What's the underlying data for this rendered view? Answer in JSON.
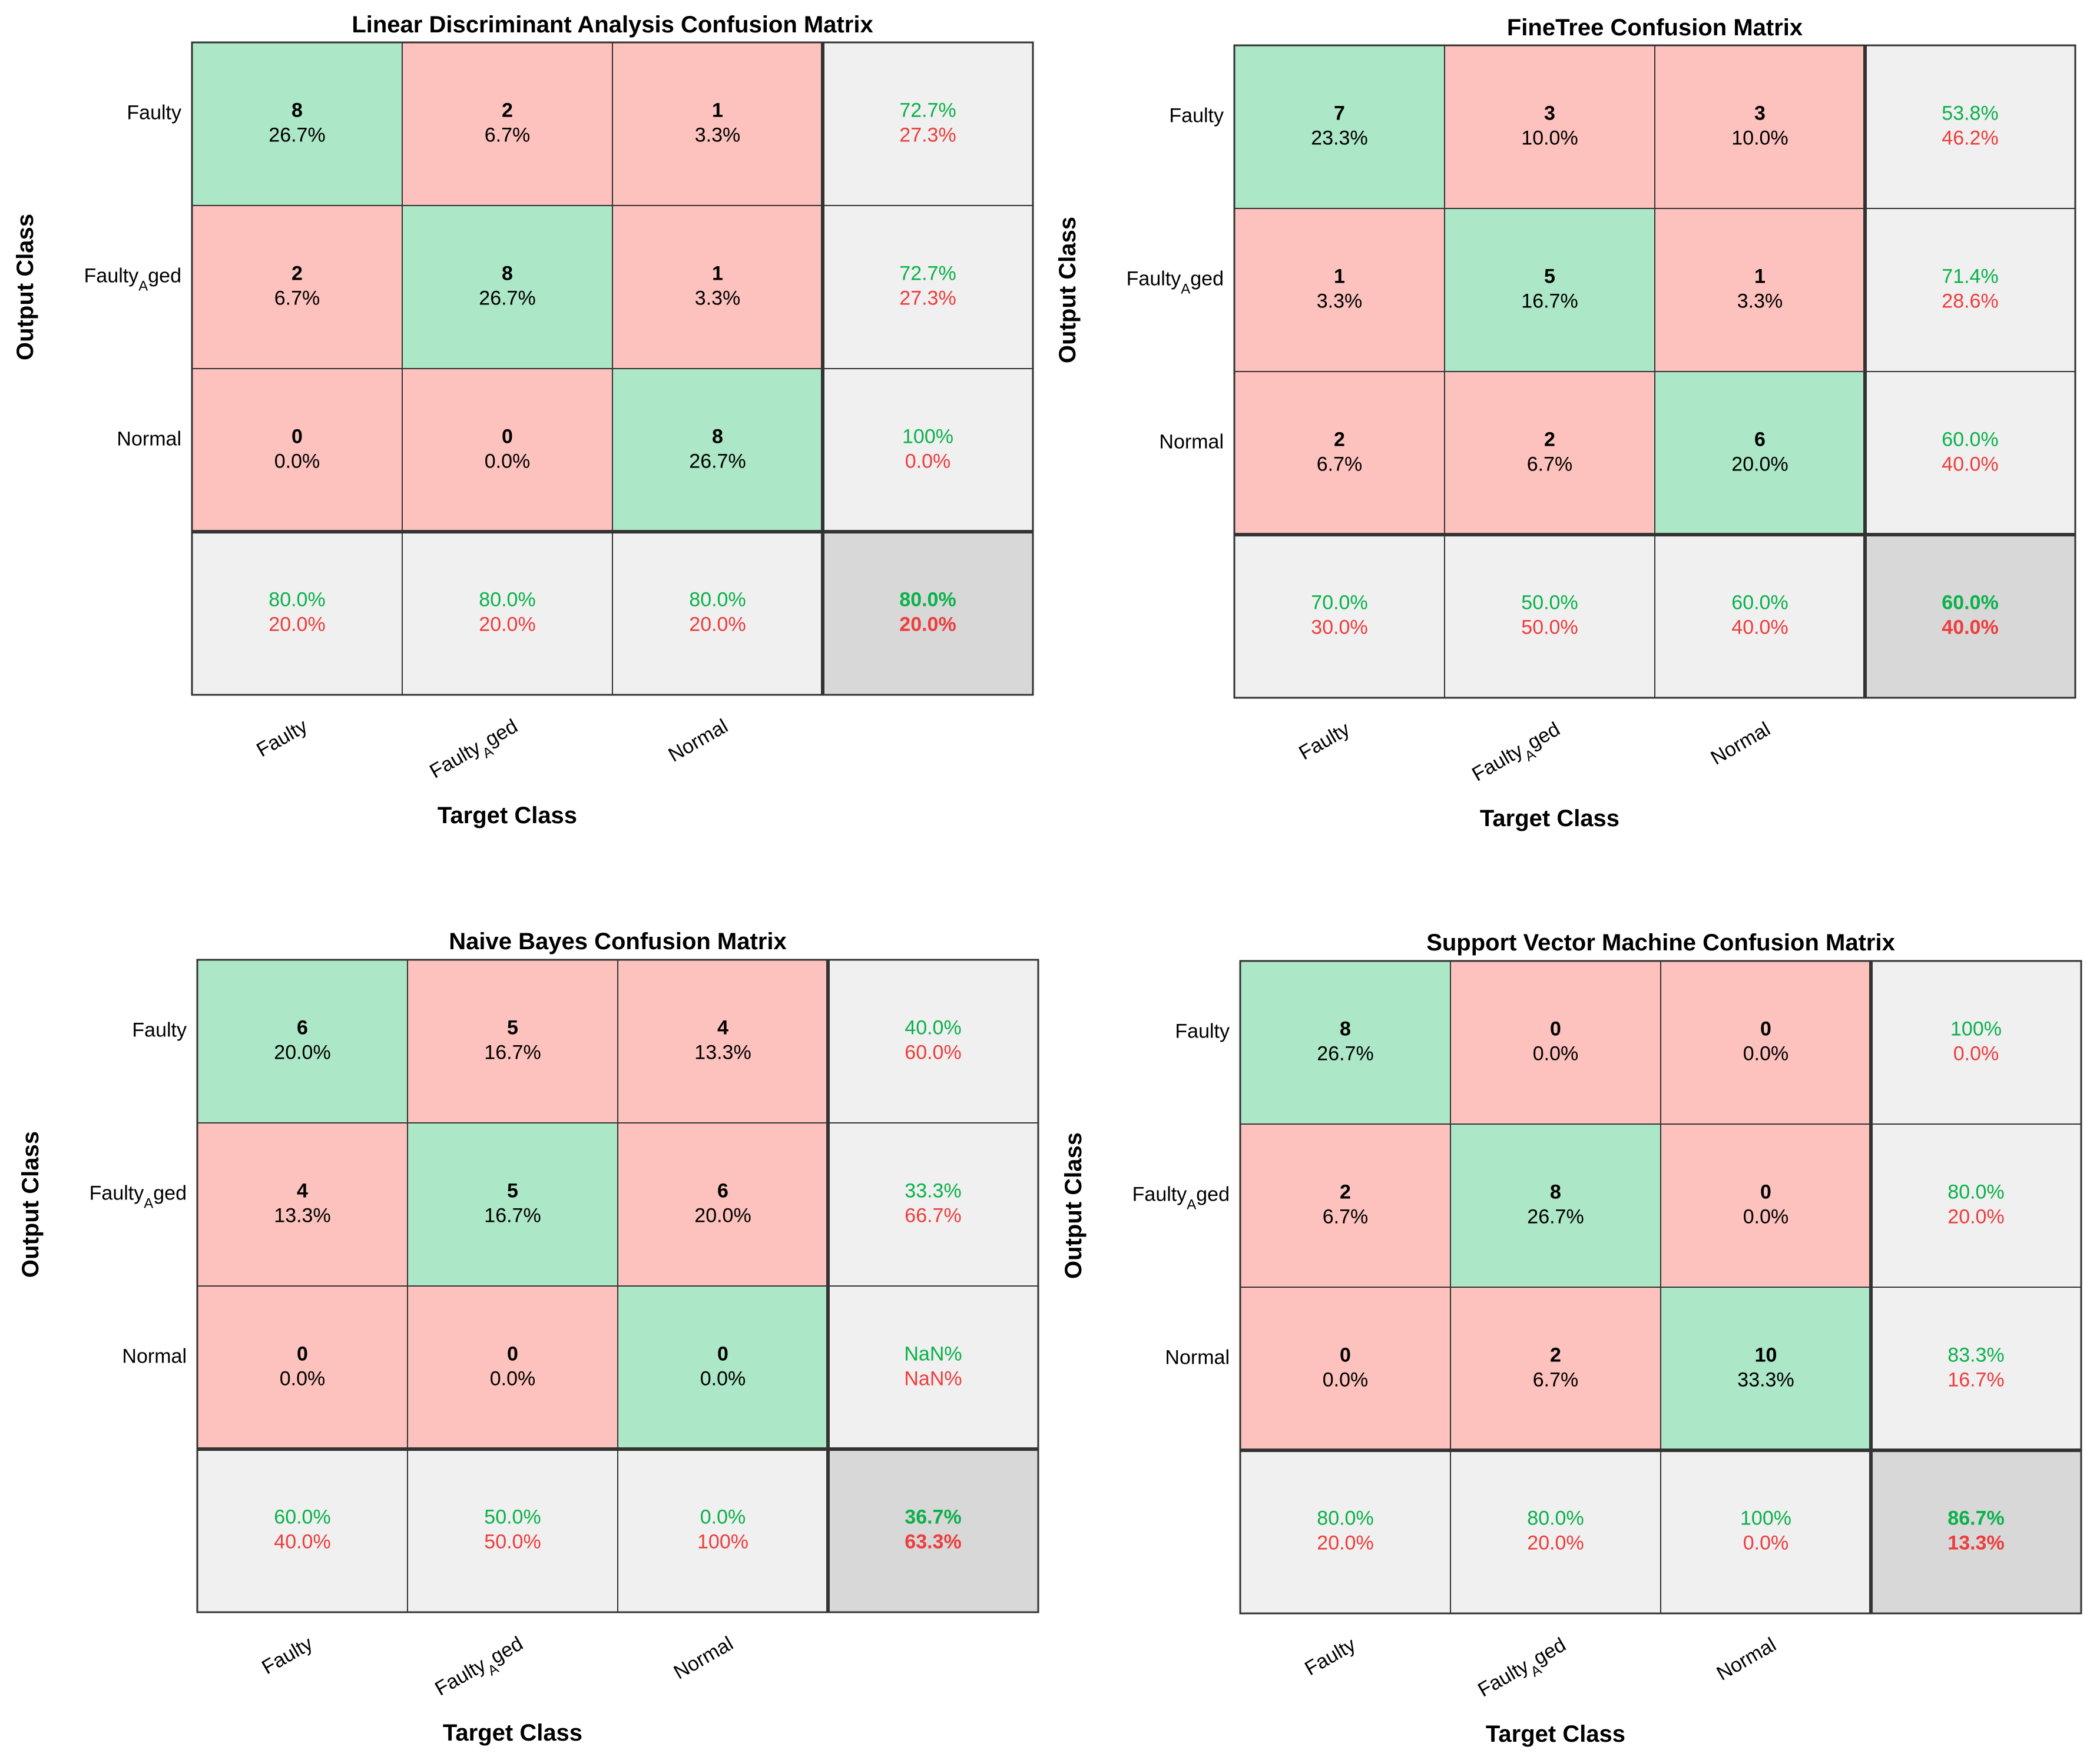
{
  "colors": {
    "correct_cell": "#ace7c7",
    "error_cell": "#fdc2bd",
    "summary_cell": "#f0f0f0",
    "total_cell": "#d8d8d8",
    "good_text": "#0bb14a",
    "bad_text": "#ee3d3d",
    "grid": "#333333"
  },
  "chart_data": [
    {
      "type": "table",
      "title": "Linear Discriminant Analysis Confusion Matrix",
      "xlabel": "Target Class",
      "ylabel": "Output Class",
      "classes": [
        {
          "main": "Faulty",
          "sub": ""
        },
        {
          "main": "Faulty",
          "sub": "A",
          "tail": "ged"
        },
        {
          "main": "Normal",
          "sub": ""
        }
      ],
      "counts": [
        [
          8,
          2,
          1
        ],
        [
          2,
          8,
          1
        ],
        [
          0,
          0,
          8
        ]
      ],
      "percents": [
        [
          "26.7%",
          "6.7%",
          "3.3%"
        ],
        [
          "6.7%",
          "26.7%",
          "3.3%"
        ],
        [
          "0.0%",
          "0.0%",
          "26.7%"
        ]
      ],
      "row_summary": [
        [
          "72.7%",
          "27.3%"
        ],
        [
          "72.7%",
          "27.3%"
        ],
        [
          "100%",
          "0.0%"
        ]
      ],
      "col_summary": [
        [
          "80.0%",
          "20.0%"
        ],
        [
          "80.0%",
          "20.0%"
        ],
        [
          "80.0%",
          "20.0%"
        ]
      ],
      "overall": [
        "80.0%",
        "20.0%"
      ]
    },
    {
      "type": "table",
      "title": "FineTree Confusion Matrix",
      "xlabel": "Target Class",
      "ylabel": "Output Class",
      "classes": [
        {
          "main": "Faulty",
          "sub": ""
        },
        {
          "main": "Faulty",
          "sub": "A",
          "tail": "ged"
        },
        {
          "main": "Normal",
          "sub": ""
        }
      ],
      "counts": [
        [
          7,
          3,
          3
        ],
        [
          1,
          5,
          1
        ],
        [
          2,
          2,
          6
        ]
      ],
      "percents": [
        [
          "23.3%",
          "10.0%",
          "10.0%"
        ],
        [
          "3.3%",
          "16.7%",
          "3.3%"
        ],
        [
          "6.7%",
          "6.7%",
          "20.0%"
        ]
      ],
      "row_summary": [
        [
          "53.8%",
          "46.2%"
        ],
        [
          "71.4%",
          "28.6%"
        ],
        [
          "60.0%",
          "40.0%"
        ]
      ],
      "col_summary": [
        [
          "70.0%",
          "30.0%"
        ],
        [
          "50.0%",
          "50.0%"
        ],
        [
          "60.0%",
          "40.0%"
        ]
      ],
      "overall": [
        "60.0%",
        "40.0%"
      ]
    },
    {
      "type": "table",
      "title": "Naive Bayes Confusion Matrix",
      "xlabel": "Target Class",
      "ylabel": "Output Class",
      "classes": [
        {
          "main": "Faulty",
          "sub": ""
        },
        {
          "main": "Faulty",
          "sub": "A",
          "tail": "ged"
        },
        {
          "main": "Normal",
          "sub": ""
        }
      ],
      "counts": [
        [
          6,
          5,
          4
        ],
        [
          4,
          5,
          6
        ],
        [
          0,
          0,
          0
        ]
      ],
      "percents": [
        [
          "20.0%",
          "16.7%",
          "13.3%"
        ],
        [
          "13.3%",
          "16.7%",
          "20.0%"
        ],
        [
          "0.0%",
          "0.0%",
          "0.0%"
        ]
      ],
      "row_summary": [
        [
          "40.0%",
          "60.0%"
        ],
        [
          "33.3%",
          "66.7%"
        ],
        [
          "NaN%",
          "NaN%"
        ]
      ],
      "col_summary": [
        [
          "60.0%",
          "40.0%"
        ],
        [
          "50.0%",
          "50.0%"
        ],
        [
          "0.0%",
          "100%"
        ]
      ],
      "overall": [
        "36.7%",
        "63.3%"
      ]
    },
    {
      "type": "table",
      "title": "Support Vector Machine Confusion Matrix",
      "xlabel": "Target Class",
      "ylabel": "Output Class",
      "classes": [
        {
          "main": "Faulty",
          "sub": ""
        },
        {
          "main": "Faulty",
          "sub": "A",
          "tail": "ged"
        },
        {
          "main": "Normal",
          "sub": ""
        }
      ],
      "counts": [
        [
          8,
          0,
          0
        ],
        [
          2,
          8,
          0
        ],
        [
          0,
          2,
          10
        ]
      ],
      "percents": [
        [
          "26.7%",
          "0.0%",
          "0.0%"
        ],
        [
          "6.7%",
          "26.7%",
          "0.0%"
        ],
        [
          "0.0%",
          "6.7%",
          "33.3%"
        ]
      ],
      "row_summary": [
        [
          "100%",
          "0.0%"
        ],
        [
          "80.0%",
          "20.0%"
        ],
        [
          "83.3%",
          "16.7%"
        ]
      ],
      "col_summary": [
        [
          "80.0%",
          "20.0%"
        ],
        [
          "80.0%",
          "20.0%"
        ],
        [
          "100%",
          "0.0%"
        ]
      ],
      "overall": [
        "86.7%",
        "13.3%"
      ]
    }
  ]
}
